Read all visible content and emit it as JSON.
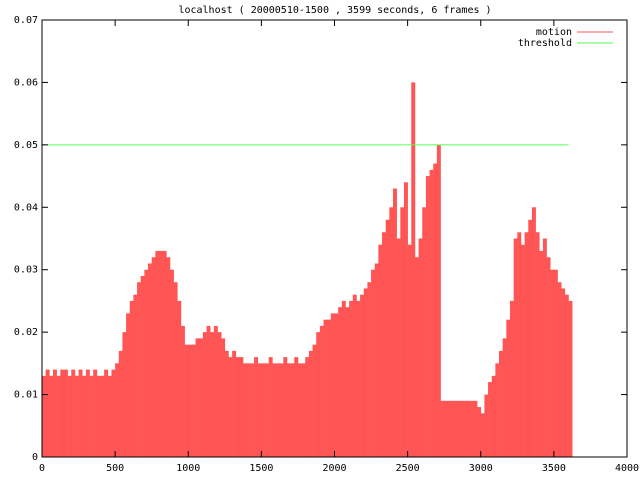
{
  "chart_data": {
    "type": "line",
    "title": "localhost ( 20000510-1500 , 3599 seconds, 6 frames )",
    "xlim": [
      0,
      4000
    ],
    "xticks": [
      0,
      500,
      1000,
      1500,
      2000,
      2500,
      3000,
      3500,
      4000
    ],
    "ylim": [
      0,
      0.07
    ],
    "yticks": [
      0,
      0.01,
      0.02,
      0.03,
      0.04,
      0.05,
      0.06,
      0.07
    ],
    "grid": false,
    "legend": "top-right",
    "series": [
      {
        "name": "motion",
        "color": "#ff5555",
        "style": "impulses",
        "x": [
          0,
          25,
          50,
          75,
          100,
          125,
          150,
          175,
          200,
          225,
          250,
          275,
          300,
          325,
          350,
          375,
          400,
          425,
          450,
          475,
          500,
          525,
          550,
          575,
          600,
          625,
          650,
          675,
          700,
          725,
          750,
          775,
          800,
          825,
          850,
          875,
          900,
          925,
          950,
          975,
          1000,
          1025,
          1050,
          1075,
          1100,
          1125,
          1150,
          1175,
          1200,
          1225,
          1250,
          1275,
          1300,
          1325,
          1350,
          1375,
          1400,
          1425,
          1450,
          1475,
          1500,
          1525,
          1550,
          1575,
          1600,
          1625,
          1650,
          1675,
          1700,
          1725,
          1750,
          1775,
          1800,
          1825,
          1850,
          1875,
          1900,
          1925,
          1950,
          1975,
          2000,
          2025,
          2050,
          2075,
          2100,
          2125,
          2150,
          2175,
          2200,
          2225,
          2250,
          2275,
          2300,
          2325,
          2350,
          2375,
          2400,
          2425,
          2450,
          2475,
          2500,
          2525,
          2550,
          2575,
          2600,
          2625,
          2650,
          2675,
          2700,
          2725,
          2750,
          2775,
          2800,
          2825,
          2850,
          2875,
          2900,
          2925,
          2950,
          2975,
          3000,
          3025,
          3050,
          3075,
          3100,
          3125,
          3150,
          3175,
          3200,
          3225,
          3250,
          3275,
          3300,
          3325,
          3350,
          3375,
          3400,
          3425,
          3450,
          3475,
          3500,
          3525,
          3550,
          3575,
          3600
        ],
        "values": [
          0.013,
          0.014,
          0.013,
          0.014,
          0.013,
          0.014,
          0.014,
          0.013,
          0.014,
          0.013,
          0.014,
          0.013,
          0.014,
          0.013,
          0.014,
          0.013,
          0.013,
          0.014,
          0.013,
          0.014,
          0.015,
          0.017,
          0.02,
          0.023,
          0.025,
          0.026,
          0.028,
          0.029,
          0.03,
          0.031,
          0.032,
          0.033,
          0.033,
          0.033,
          0.032,
          0.03,
          0.028,
          0.025,
          0.021,
          0.018,
          0.018,
          0.018,
          0.019,
          0.019,
          0.02,
          0.021,
          0.02,
          0.021,
          0.02,
          0.019,
          0.017,
          0.016,
          0.017,
          0.016,
          0.016,
          0.015,
          0.015,
          0.015,
          0.016,
          0.015,
          0.015,
          0.015,
          0.016,
          0.015,
          0.015,
          0.015,
          0.016,
          0.015,
          0.015,
          0.016,
          0.015,
          0.015,
          0.016,
          0.017,
          0.018,
          0.02,
          0.021,
          0.022,
          0.022,
          0.023,
          0.023,
          0.024,
          0.025,
          0.024,
          0.025,
          0.026,
          0.025,
          0.026,
          0.027,
          0.028,
          0.03,
          0.031,
          0.034,
          0.036,
          0.038,
          0.04,
          0.043,
          0.035,
          0.04,
          0.044,
          0.034,
          0.06,
          0.032,
          0.035,
          0.04,
          0.045,
          0.046,
          0.047,
          0.05,
          0.009,
          0.009,
          0.009,
          0.009,
          0.009,
          0.009,
          0.009,
          0.009,
          0.009,
          0.009,
          0.008,
          0.007,
          0.01,
          0.012,
          0.013,
          0.015,
          0.017,
          0.019,
          0.022,
          0.025,
          0.035,
          0.036,
          0.034,
          0.036,
          0.038,
          0.04,
          0.036,
          0.033,
          0.035,
          0.032,
          0.03,
          0.03,
          0.028,
          0.027,
          0.026,
          0.025
        ]
      },
      {
        "name": "threshold",
        "color": "#55ff55",
        "style": "lines",
        "x": [
          0,
          3600
        ],
        "values": [
          0.05,
          0.05
        ]
      }
    ]
  }
}
